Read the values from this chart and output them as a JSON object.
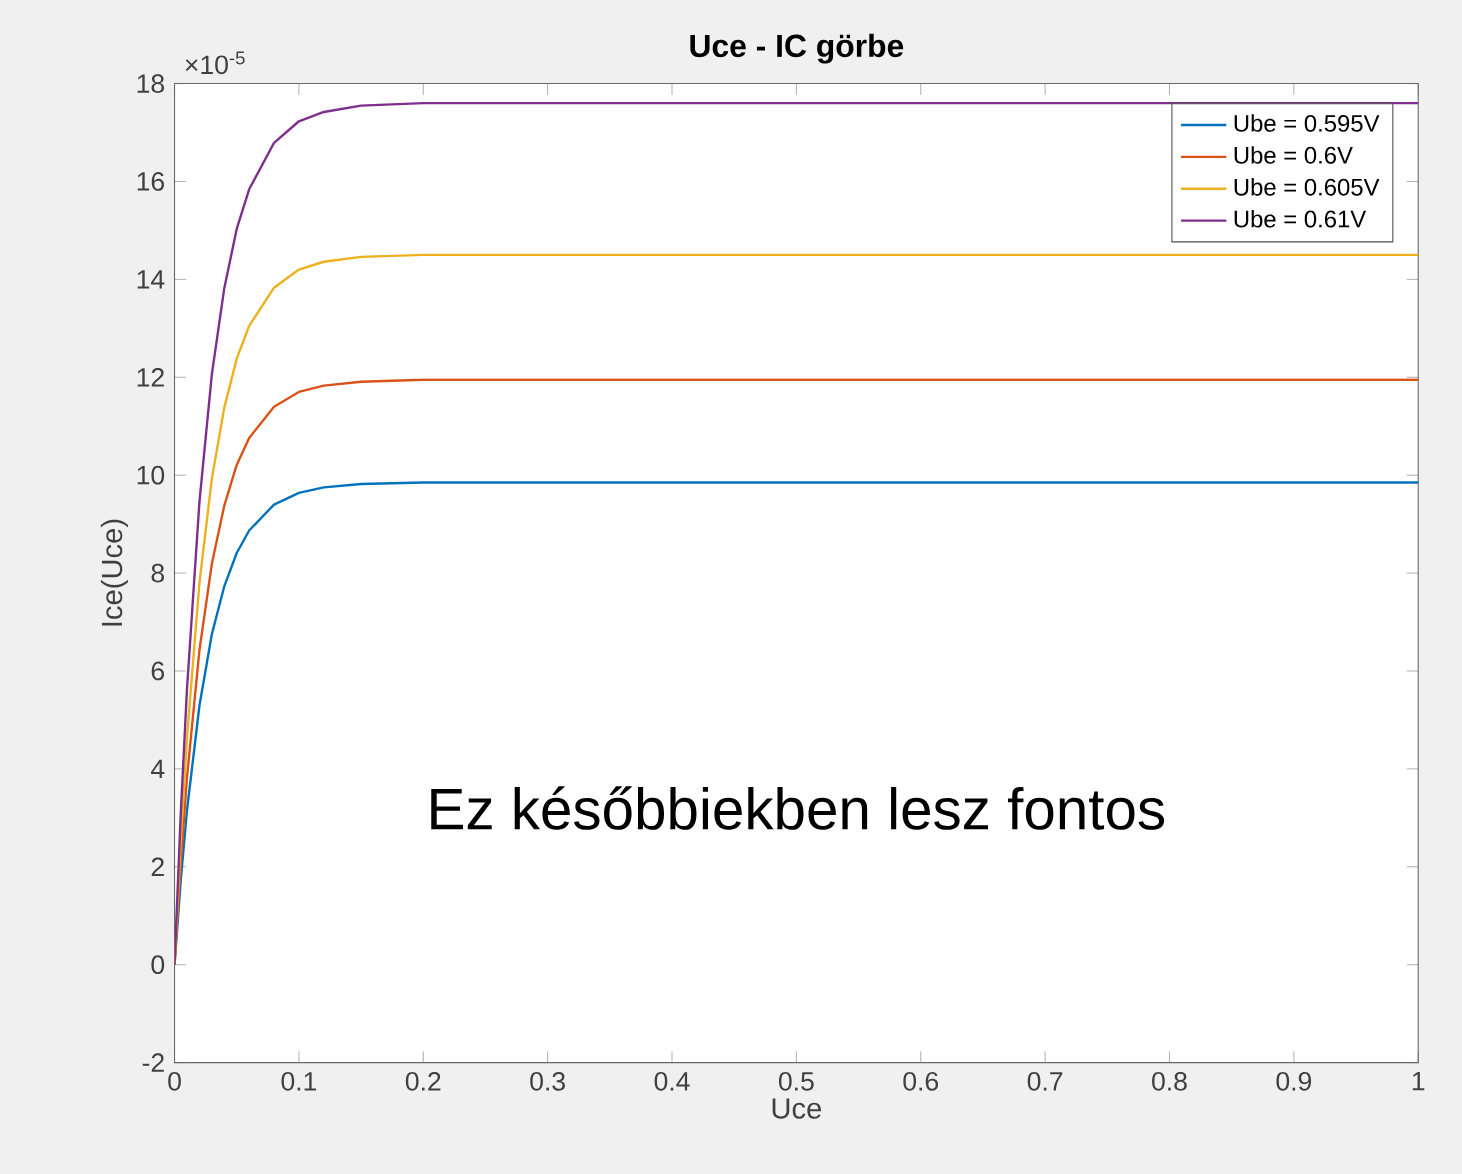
{
  "chart_data": {
    "type": "line",
    "title": "Uce - IC görbe",
    "xlabel": "Uce",
    "ylabel": "Ice(Uce)",
    "x": [
      0,
      0.005,
      0.01,
      0.02,
      0.03,
      0.04,
      0.05,
      0.06,
      0.08,
      0.1,
      0.12,
      0.15,
      0.2,
      0.3,
      1
    ],
    "series": [
      {
        "name": "Ube = 0.595V",
        "color": "#0072bd",
        "values": [
          0,
          1.72,
          3.15,
          5.29,
          6.75,
          7.73,
          8.41,
          8.87,
          9.4,
          9.64,
          9.75,
          9.82,
          9.85,
          9.85,
          9.85
        ]
      },
      {
        "name": "Ube = 0.6V",
        "color": "#d95319",
        "values": [
          0,
          2.09,
          3.82,
          6.42,
          8.19,
          9.38,
          10.21,
          10.76,
          11.4,
          11.7,
          11.83,
          11.91,
          11.95,
          11.95,
          11.95
        ]
      },
      {
        "name": "Ube = 0.605V",
        "color": "#edb120",
        "values": [
          0,
          2.54,
          4.64,
          7.79,
          9.93,
          11.38,
          12.38,
          13.05,
          13.83,
          14.2,
          14.36,
          14.46,
          14.5,
          14.5,
          14.5
        ]
      },
      {
        "name": "Ube = 0.61V",
        "color": "#7e2f8e",
        "values": [
          0,
          3.08,
          5.63,
          9.45,
          12.06,
          13.82,
          15.03,
          15.84,
          16.79,
          17.23,
          17.42,
          17.55,
          17.6,
          17.6,
          17.6
        ]
      }
    ],
    "xlim": [
      0,
      1
    ],
    "ylim": [
      -2,
      18
    ],
    "xticks": [
      0,
      0.1,
      0.2,
      0.3,
      0.4,
      0.5,
      0.6,
      0.7,
      0.8,
      0.9,
      1
    ],
    "yticks": [
      -2,
      0,
      2,
      4,
      6,
      8,
      10,
      12,
      14,
      16,
      18
    ],
    "legend": "top right",
    "annotations": [
      "×10$^{-5}$",
      "Ez későbbiekben lesz fontos"
    ]
  }
}
